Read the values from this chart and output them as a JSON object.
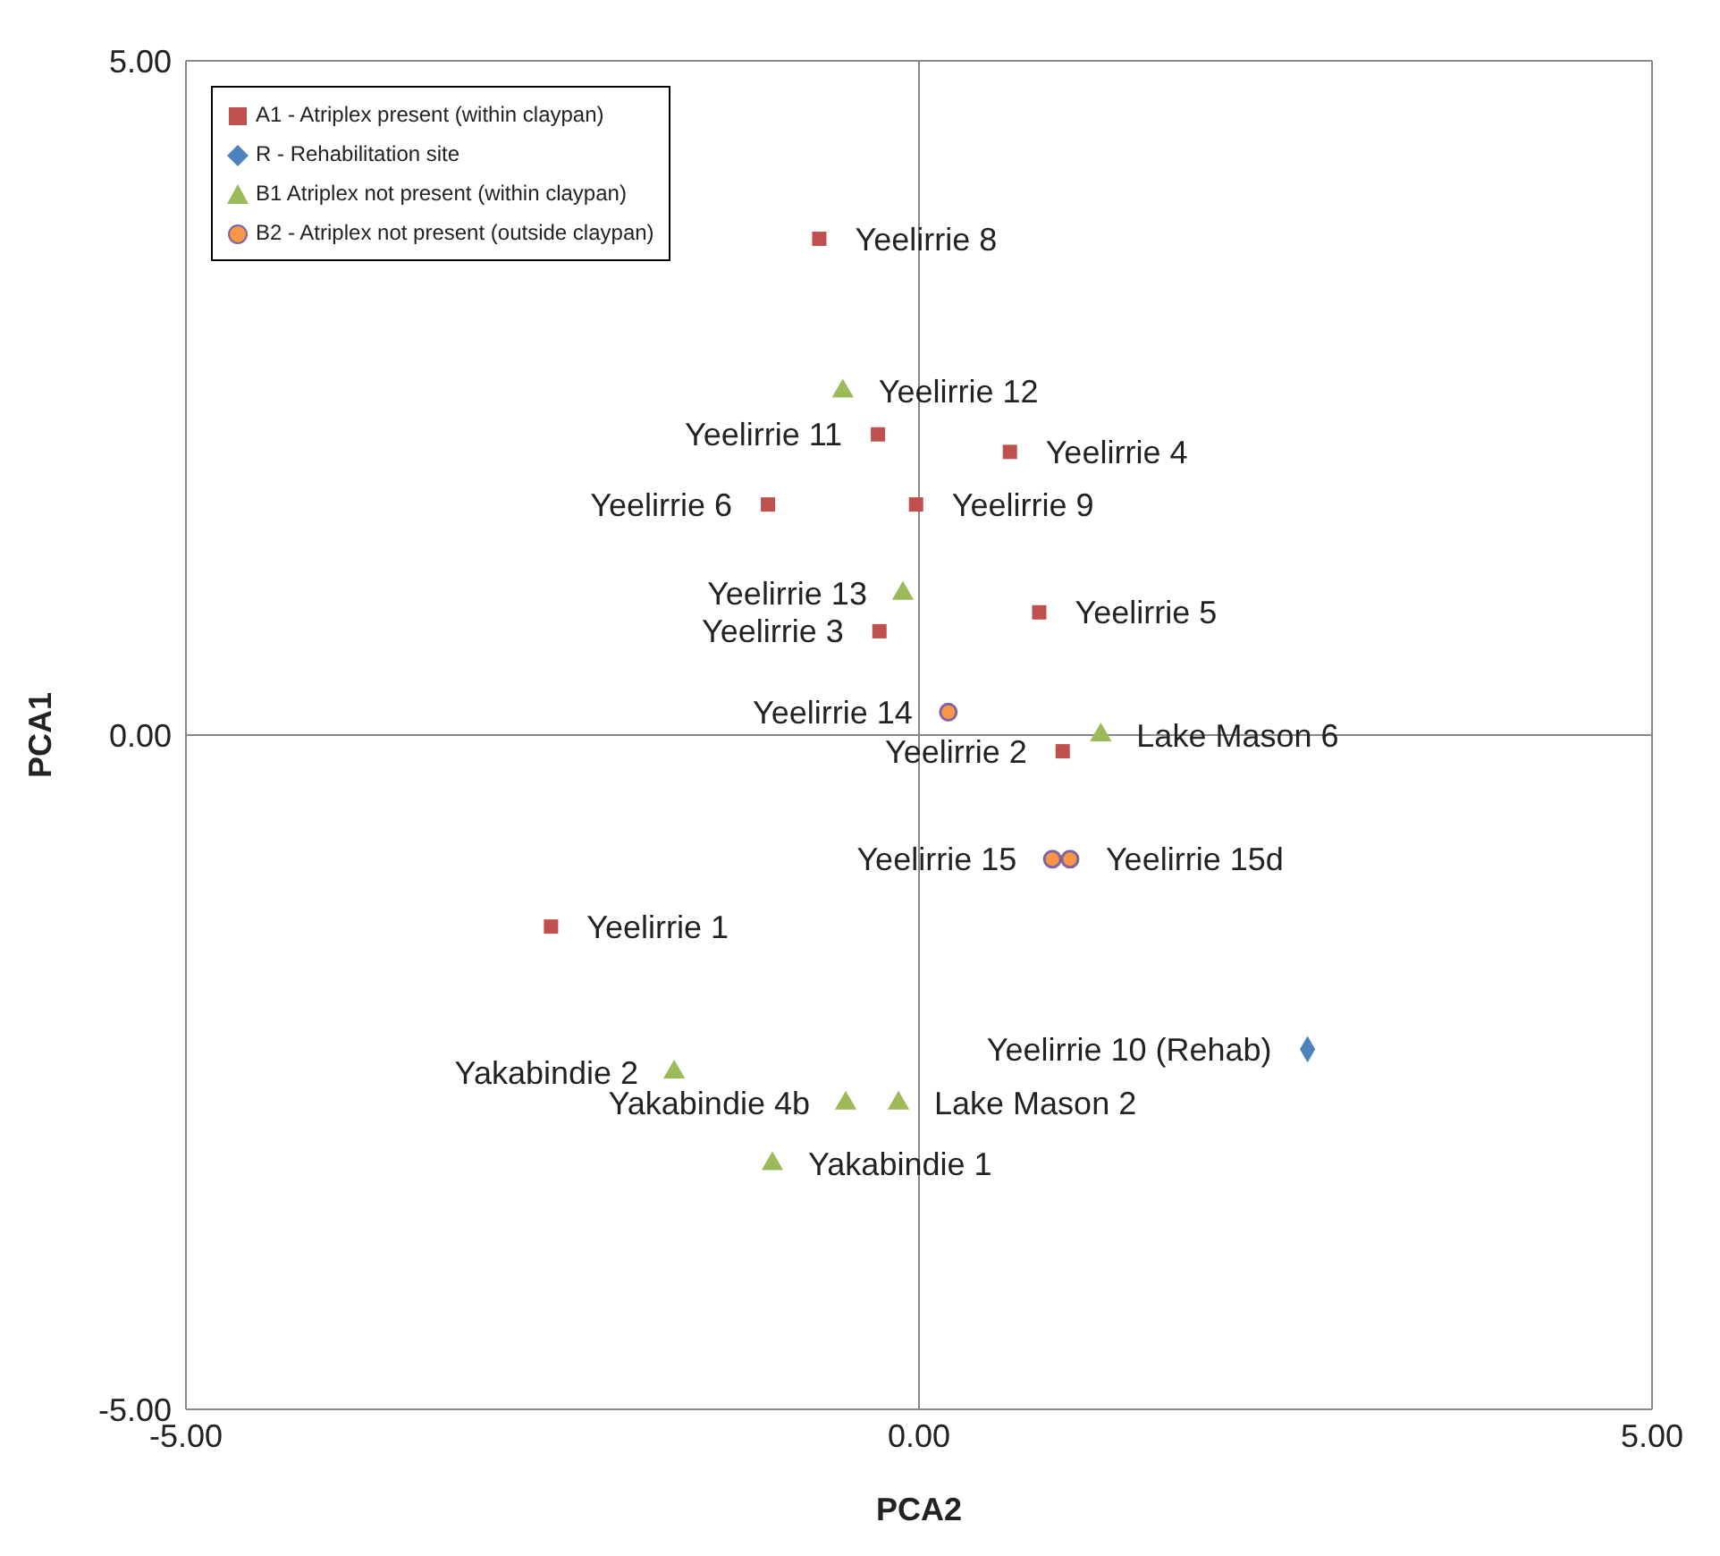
{
  "chart_data": {
    "type": "scatter",
    "xlabel": "PCA2",
    "ylabel": "PCA1",
    "xlim": [
      -5,
      5
    ],
    "ylim": [
      -5,
      5
    ],
    "xticks": [
      {
        "value": -5,
        "label": "-5.00"
      },
      {
        "value": 0,
        "label": "0.00"
      },
      {
        "value": 5,
        "label": "5.00"
      }
    ],
    "yticks": [
      {
        "value": -5,
        "label": "-5.00"
      },
      {
        "value": 0,
        "label": "0.00"
      },
      {
        "value": 5,
        "label": "5.00"
      }
    ],
    "grid": true,
    "legend": "top left",
    "series": [
      {
        "name": "A1 - Atriplex present (within claypan)",
        "color": "#c0504d",
        "marker": "square",
        "x": [
          -0.68,
          -0.28,
          0.62,
          -1.03,
          -0.02,
          0.82,
          -0.27,
          0.98,
          -2.51
        ],
        "values": [
          3.68,
          2.23,
          2.1,
          1.71,
          1.71,
          0.91,
          0.77,
          -0.12,
          -1.42
        ]
      },
      {
        "name": "R - Rehabilitation site",
        "color": "#4f81bd",
        "marker": "diamond",
        "x": [
          2.65
        ],
        "values": [
          -2.33
        ]
      },
      {
        "name": "B1 Atriplex not present (within claypan)",
        "color": "#9bbb59",
        "marker": "triangle",
        "x": [
          -0.52,
          -0.11,
          1.24,
          -1.67,
          -0.5,
          -0.14,
          -1.0
        ],
        "values": [
          2.55,
          1.05,
          0.0,
          -2.5,
          -2.73,
          -2.73,
          -3.18
        ]
      },
      {
        "name": "B2 - Atriplex not present (outside claypan)",
        "color": "#f79646",
        "marker": "circle",
        "x": [
          0.2,
          0.91,
          1.03
        ],
        "values": [
          0.17,
          -0.92,
          -0.92
        ]
      }
    ],
    "annotations": [
      {
        "text": "Yeelirrie 8",
        "x": -0.68,
        "y": 3.68
      },
      {
        "text": "Yeelirrie 11",
        "x": -0.28,
        "y": 2.23
      },
      {
        "text": "Yeelirrie 4",
        "x": 0.62,
        "y": 2.1
      },
      {
        "text": "Yeelirrie 6",
        "x": -1.03,
        "y": 1.71
      },
      {
        "text": "Yeelirrie 9",
        "x": -0.02,
        "y": 1.71
      },
      {
        "text": "Yeelirrie 5",
        "x": 0.82,
        "y": 0.91
      },
      {
        "text": "Yeelirrie 3",
        "x": -0.27,
        "y": 0.77
      },
      {
        "text": "Yeelirrie 2",
        "x": 0.98,
        "y": -0.12
      },
      {
        "text": "Yeelirrie 1",
        "x": -2.51,
        "y": -1.42
      },
      {
        "text": "Yeelirrie 10 (Rehab)",
        "x": 2.65,
        "y": -2.33
      },
      {
        "text": "Yeelirrie 12",
        "x": -0.52,
        "y": 2.55
      },
      {
        "text": "Yeelirrie 13",
        "x": -0.11,
        "y": 1.05
      },
      {
        "text": "Lake Mason 6",
        "x": 1.24,
        "y": 0.0
      },
      {
        "text": "Yakabindie 2",
        "x": -1.67,
        "y": -2.5
      },
      {
        "text": "Yakabindie 4b",
        "x": -0.5,
        "y": -2.73
      },
      {
        "text": "Lake Mason 2",
        "x": -0.14,
        "y": -2.73
      },
      {
        "text": "Yakabindie 1",
        "x": -1.0,
        "y": -3.18
      },
      {
        "text": "Yeelirrie 14",
        "x": 0.2,
        "y": 0.17
      },
      {
        "text": "Yeelirrie 15",
        "x": 0.91,
        "y": -0.92
      },
      {
        "text": "Yeelirrie 15d",
        "x": 1.03,
        "y": -0.92
      }
    ]
  }
}
